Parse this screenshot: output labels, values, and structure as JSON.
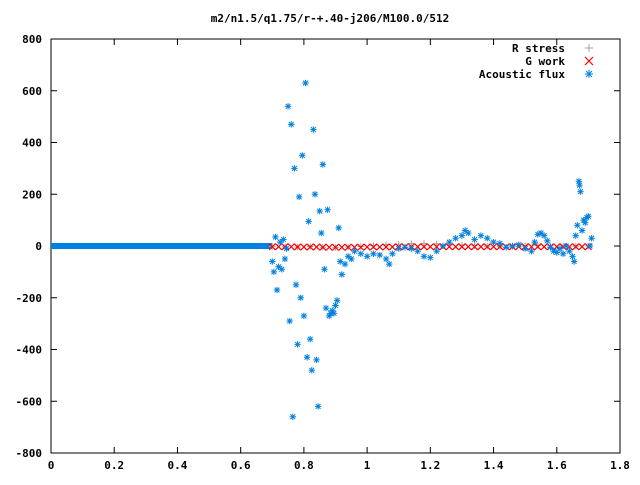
{
  "chart_data": {
    "type": "scatter",
    "title": "m2/n1.5/q1.75/r-+.40-j206/M100.0/512",
    "xlabel": "",
    "ylabel": "",
    "xlim": [
      0,
      1.8
    ],
    "ylim": [
      -800,
      800
    ],
    "x_ticks": [
      0,
      0.2,
      0.4,
      0.6,
      0.8,
      1,
      1.2,
      1.4,
      1.6,
      1.8
    ],
    "x_tick_labels": [
      "0",
      "0.2",
      "0.4",
      "0.6",
      "0.8",
      "1",
      "1.2",
      "1.4",
      "1.6",
      "1.8"
    ],
    "y_ticks": [
      -800,
      -600,
      -400,
      -200,
      0,
      200,
      400,
      600,
      800
    ],
    "y_tick_labels": [
      "-800",
      "-600",
      "-400",
      "-200",
      "0",
      "200",
      "400",
      "600",
      "800"
    ],
    "grid": false,
    "legend_position": "top-right",
    "series": [
      {
        "name": "R stress",
        "marker": "plus",
        "color": "#a0a0a0",
        "points": [
          [
            0.7,
            -2
          ],
          [
            0.74,
            -3
          ],
          [
            0.78,
            -4
          ],
          [
            0.82,
            -2
          ],
          [
            0.86,
            -5
          ],
          [
            0.9,
            -6
          ],
          [
            0.94,
            -4
          ],
          [
            0.98,
            -2
          ],
          [
            1.02,
            2
          ],
          [
            1.06,
            5
          ],
          [
            1.1,
            7
          ],
          [
            1.14,
            9
          ],
          [
            1.18,
            10
          ],
          [
            1.22,
            8
          ],
          [
            1.26,
            5
          ],
          [
            1.3,
            3
          ],
          [
            1.34,
            1
          ],
          [
            1.38,
            -1
          ],
          [
            1.42,
            -2
          ],
          [
            1.46,
            -1
          ],
          [
            1.5,
            1
          ],
          [
            1.54,
            2
          ],
          [
            1.58,
            1
          ],
          [
            1.62,
            0
          ],
          [
            1.66,
            -1
          ],
          [
            1.7,
            0
          ]
        ]
      },
      {
        "name": "G work",
        "marker": "cross",
        "color": "#ff0000",
        "points": [
          [
            0.7,
            -3
          ],
          [
            0.72,
            -3
          ],
          [
            0.74,
            -3
          ],
          [
            0.76,
            -3
          ],
          [
            0.78,
            -4
          ],
          [
            0.8,
            -4
          ],
          [
            0.82,
            -4
          ],
          [
            0.84,
            -4
          ],
          [
            0.86,
            -5
          ],
          [
            0.88,
            -5
          ],
          [
            0.9,
            -5
          ],
          [
            0.92,
            -5
          ],
          [
            0.94,
            -5
          ],
          [
            0.96,
            -5
          ],
          [
            0.98,
            -5
          ],
          [
            1.0,
            -4
          ],
          [
            1.02,
            -4
          ],
          [
            1.04,
            -4
          ],
          [
            1.06,
            -4
          ],
          [
            1.08,
            -4
          ],
          [
            1.1,
            -3
          ],
          [
            1.12,
            -3
          ],
          [
            1.14,
            -3
          ],
          [
            1.16,
            -3
          ],
          [
            1.18,
            -3
          ],
          [
            1.2,
            -3
          ],
          [
            1.22,
            -3
          ],
          [
            1.24,
            -3
          ],
          [
            1.26,
            -3
          ],
          [
            1.28,
            -3
          ],
          [
            1.3,
            -3
          ],
          [
            1.32,
            -3
          ],
          [
            1.34,
            -3
          ],
          [
            1.36,
            -3
          ],
          [
            1.38,
            -3
          ],
          [
            1.4,
            -3
          ],
          [
            1.42,
            -3
          ],
          [
            1.44,
            -3
          ],
          [
            1.46,
            -3
          ],
          [
            1.48,
            -3
          ],
          [
            1.5,
            -3
          ],
          [
            1.52,
            -3
          ],
          [
            1.54,
            -3
          ],
          [
            1.56,
            -3
          ],
          [
            1.58,
            -3
          ],
          [
            1.6,
            -3
          ],
          [
            1.62,
            -3
          ],
          [
            1.64,
            -3
          ],
          [
            1.66,
            -3
          ],
          [
            1.68,
            -3
          ],
          [
            1.7,
            -3
          ]
        ]
      },
      {
        "name": "Acoustic flux",
        "marker": "star",
        "color": "#0080e0",
        "points": [
          [
            0.7,
            -60
          ],
          [
            0.705,
            -100
          ],
          [
            0.71,
            35
          ],
          [
            0.715,
            -170
          ],
          [
            0.72,
            -80
          ],
          [
            0.725,
            15
          ],
          [
            0.73,
            -90
          ],
          [
            0.735,
            25
          ],
          [
            0.74,
            -50
          ],
          [
            0.745,
            -10
          ],
          [
            0.75,
            540
          ],
          [
            0.755,
            -290
          ],
          [
            0.76,
            470
          ],
          [
            0.765,
            -660
          ],
          [
            0.77,
            300
          ],
          [
            0.775,
            -150
          ],
          [
            0.78,
            -380
          ],
          [
            0.785,
            190
          ],
          [
            0.79,
            -200
          ],
          [
            0.795,
            350
          ],
          [
            0.8,
            -270
          ],
          [
            0.805,
            630
          ],
          [
            0.81,
            -430
          ],
          [
            0.815,
            95
          ],
          [
            0.82,
            -360
          ],
          [
            0.825,
            -480
          ],
          [
            0.83,
            450
          ],
          [
            0.835,
            200
          ],
          [
            0.84,
            -440
          ],
          [
            0.845,
            -620
          ],
          [
            0.85,
            135
          ],
          [
            0.855,
            50
          ],
          [
            0.86,
            315
          ],
          [
            0.865,
            -90
          ],
          [
            0.87,
            -240
          ],
          [
            0.875,
            140
          ],
          [
            0.88,
            -270
          ],
          [
            0.885,
            -260
          ],
          [
            0.89,
            -250
          ],
          [
            0.895,
            -260
          ],
          [
            0.9,
            -230
          ],
          [
            0.905,
            -210
          ],
          [
            0.91,
            70
          ],
          [
            0.915,
            -60
          ],
          [
            0.92,
            -110
          ],
          [
            0.93,
            -70
          ],
          [
            0.94,
            -40
          ],
          [
            0.95,
            -50
          ],
          [
            0.96,
            -20
          ],
          [
            0.98,
            -30
          ],
          [
            1.0,
            -40
          ],
          [
            1.02,
            -30
          ],
          [
            1.04,
            -35
          ],
          [
            1.06,
            -50
          ],
          [
            1.07,
            -70
          ],
          [
            1.08,
            -30
          ],
          [
            1.1,
            -10
          ],
          [
            1.12,
            -5
          ],
          [
            1.14,
            -10
          ],
          [
            1.16,
            -20
          ],
          [
            1.18,
            -40
          ],
          [
            1.2,
            -45
          ],
          [
            1.22,
            -20
          ],
          [
            1.24,
            0
          ],
          [
            1.26,
            15
          ],
          [
            1.28,
            30
          ],
          [
            1.3,
            40
          ],
          [
            1.31,
            60
          ],
          [
            1.32,
            50
          ],
          [
            1.34,
            25
          ],
          [
            1.36,
            40
          ],
          [
            1.38,
            30
          ],
          [
            1.4,
            15
          ],
          [
            1.42,
            10
          ],
          [
            1.44,
            -5
          ],
          [
            1.46,
            0
          ],
          [
            1.48,
            5
          ],
          [
            1.5,
            -10
          ],
          [
            1.52,
            -20
          ],
          [
            1.53,
            15
          ],
          [
            1.54,
            45
          ],
          [
            1.55,
            50
          ],
          [
            1.56,
            40
          ],
          [
            1.57,
            20
          ],
          [
            1.58,
            -5
          ],
          [
            1.59,
            -20
          ],
          [
            1.6,
            -25
          ],
          [
            1.61,
            -10
          ],
          [
            1.62,
            -30
          ],
          [
            1.63,
            0
          ],
          [
            1.64,
            -20
          ],
          [
            1.65,
            -40
          ],
          [
            1.655,
            -60
          ],
          [
            1.66,
            40
          ],
          [
            1.665,
            80
          ],
          [
            1.67,
            250
          ],
          [
            1.672,
            235
          ],
          [
            1.675,
            210
          ],
          [
            1.68,
            60
          ],
          [
            1.685,
            100
          ],
          [
            1.69,
            90
          ],
          [
            1.695,
            110
          ],
          [
            1.7,
            115
          ],
          [
            1.705,
            0
          ],
          [
            1.71,
            30
          ]
        ]
      }
    ],
    "dense_band": {
      "series": "Acoustic flux",
      "x_range": [
        0,
        0.7
      ],
      "y": 0,
      "color": "#0080e0"
    }
  }
}
